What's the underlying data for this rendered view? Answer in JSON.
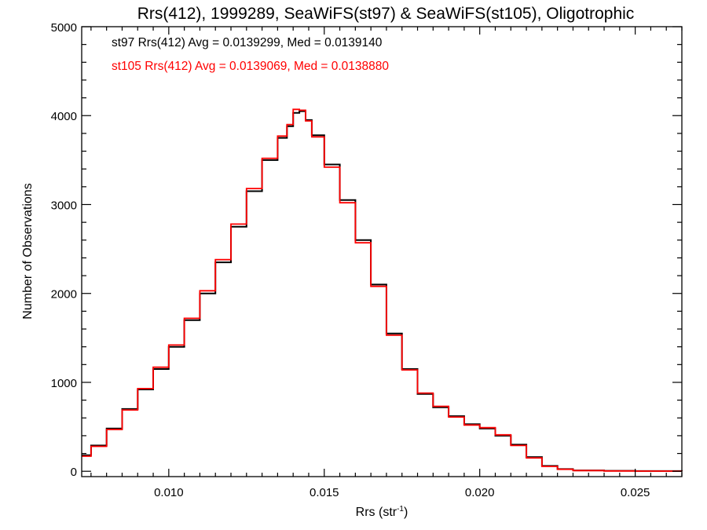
{
  "chart_data": {
    "type": "line",
    "step": true,
    "title": "Rrs(412), 1999289, SeaWiFS(st97) & SeaWiFS(st105), Oligotrophic",
    "xlabel": "Rrs (str",
    "xlabel_sup": "-1",
    "xlabel_close": ")",
    "ylabel": "Number of Observations",
    "xlim": [
      0.0072,
      0.0265
    ],
    "ylim": [
      -60,
      5000
    ],
    "grid": false,
    "x_ticks": [
      {
        "value": 0.01,
        "label": "0.010"
      },
      {
        "value": 0.015,
        "label": "0.015"
      },
      {
        "value": 0.02,
        "label": "0.020"
      },
      {
        "value": 0.025,
        "label": "0.025"
      }
    ],
    "y_ticks": [
      {
        "value": 0,
        "label": "0"
      },
      {
        "value": 1000,
        "label": "1000"
      },
      {
        "value": 2000,
        "label": "2000"
      },
      {
        "value": 3000,
        "label": "3000"
      },
      {
        "value": 4000,
        "label": "4000"
      },
      {
        "value": 5000,
        "label": "5000"
      }
    ],
    "annotations": [
      {
        "text": "st97 Rrs(412) Avg = 0.0139299, Med = 0.0139140",
        "color": "#000000"
      },
      {
        "text": "st105 Rrs(412) Avg = 0.0139069, Med = 0.0138880",
        "color": "#ff0000"
      }
    ],
    "series": [
      {
        "color": "#000000",
        "x": [
          0.0072,
          0.0075,
          0.008,
          0.0085,
          0.009,
          0.0095,
          0.01,
          0.0105,
          0.011,
          0.0115,
          0.012,
          0.0125,
          0.013,
          0.0135,
          0.0138,
          0.014,
          0.0142,
          0.0144,
          0.0146,
          0.015,
          0.0155,
          0.016,
          0.0165,
          0.017,
          0.0175,
          0.018,
          0.0185,
          0.019,
          0.0195,
          0.02,
          0.0205,
          0.021,
          0.0215,
          0.022,
          0.0225,
          0.023,
          0.024,
          0.025,
          0.0265
        ],
        "y": [
          180,
          290,
          480,
          700,
          920,
          1150,
          1400,
          1700,
          2000,
          2350,
          2750,
          3150,
          3500,
          3750,
          3880,
          4030,
          4050,
          3950,
          3780,
          3450,
          3050,
          2600,
          2100,
          1550,
          1150,
          870,
          720,
          620,
          530,
          480,
          400,
          300,
          160,
          60,
          25,
          10,
          5,
          3,
          2
        ]
      },
      {
        "color": "#ff0000",
        "x": [
          0.0072,
          0.0075,
          0.008,
          0.0085,
          0.009,
          0.0095,
          0.01,
          0.0105,
          0.011,
          0.0115,
          0.012,
          0.0125,
          0.013,
          0.0135,
          0.0138,
          0.014,
          0.0142,
          0.0144,
          0.0146,
          0.015,
          0.0155,
          0.016,
          0.0165,
          0.017,
          0.0175,
          0.018,
          0.0185,
          0.019,
          0.0195,
          0.02,
          0.0205,
          0.021,
          0.0215,
          0.022,
          0.0225,
          0.023,
          0.024,
          0.025,
          0.0265
        ],
        "y": [
          170,
          280,
          470,
          690,
          930,
          1170,
          1420,
          1720,
          2030,
          2380,
          2780,
          3180,
          3520,
          3770,
          3900,
          4070,
          4060,
          3940,
          3760,
          3420,
          3020,
          2570,
          2080,
          1530,
          1140,
          880,
          730,
          610,
          520,
          490,
          410,
          290,
          150,
          55,
          22,
          8,
          4,
          2,
          1
        ]
      }
    ]
  }
}
